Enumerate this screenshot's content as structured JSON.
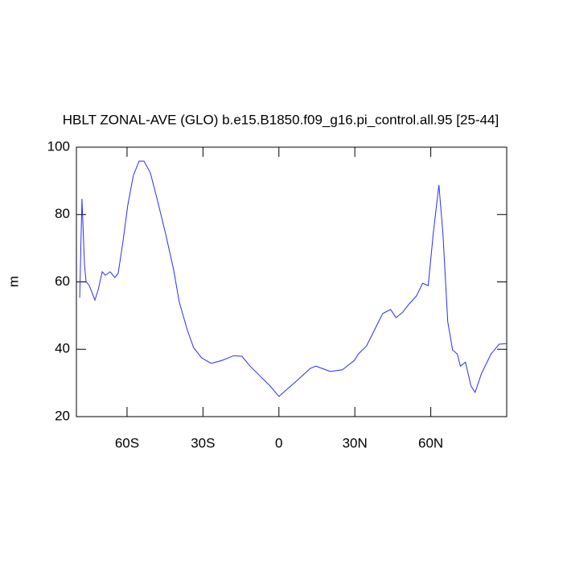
{
  "chart_data": {
    "type": "line",
    "title": "HBLT ZONAL-AVE (GLO) b.e15.B1850.f09_g16.pi_control.all.95 [25-44]",
    "ylabel": "m",
    "x": [
      -78.7,
      -77.8,
      -76.8,
      -76.2,
      -74.9,
      -72.7,
      -71.4,
      -69.8,
      -68.6,
      -66.7,
      -64.8,
      -63.5,
      -61.6,
      -59.7,
      -57.5,
      -55.2,
      -53.3,
      -50.8,
      -47.9,
      -44.8,
      -41.6,
      -39.4,
      -36.2,
      -33.7,
      -30.5,
      -26.7,
      -22.5,
      -17.8,
      -14.6,
      -11.4,
      -8.3,
      -3.5,
      0,
      2.9,
      7.6,
      12.4,
      14.6,
      17.1,
      20.3,
      25.1,
      29.8,
      31.4,
      34.6,
      37.8,
      41,
      44.1,
      46.3,
      48.9,
      51.4,
      54.3,
      56.8,
      59,
      61,
      63.2,
      64.8,
      66.7,
      68.6,
      70.5,
      71.7,
      73.7,
      75.9,
      77.5,
      80,
      83.8,
      87,
      90
    ],
    "series": [
      {
        "name": "HBLT",
        "color": "#2b2bff",
        "values": [
          55.3,
          84.7,
          64.9,
          60.1,
          58.9,
          54.6,
          57.7,
          63,
          62,
          63,
          61.3,
          62.5,
          72,
          82.8,
          91.6,
          95.9,
          95.9,
          92.4,
          84,
          74.4,
          63.7,
          54.1,
          45.8,
          40.5,
          37.4,
          35.8,
          36.7,
          38.1,
          37.9,
          35,
          32.7,
          29.1,
          26,
          27.9,
          31,
          34.3,
          35,
          34.3,
          33.4,
          33.9,
          36.7,
          38.6,
          41,
          45.8,
          50.6,
          51.8,
          49.4,
          51,
          53.4,
          55.8,
          59.6,
          58.9,
          74.4,
          88.8,
          74.4,
          48.2,
          39.8,
          38.6,
          35,
          36.2,
          29.1,
          27.2,
          32.7,
          38.6,
          41.5,
          41.7
        ]
      }
    ],
    "xlim": [
      -80,
      90
    ],
    "xticks": [
      {
        "value": -60,
        "label": "60S"
      },
      {
        "value": -30,
        "label": "30S"
      },
      0,
      {
        "value": 30,
        "label": "30N"
      },
      {
        "value": 60,
        "label": "60N"
      }
    ],
    "ylim": [
      20,
      100
    ],
    "yticks": [
      20,
      40,
      60,
      80,
      100
    ]
  }
}
